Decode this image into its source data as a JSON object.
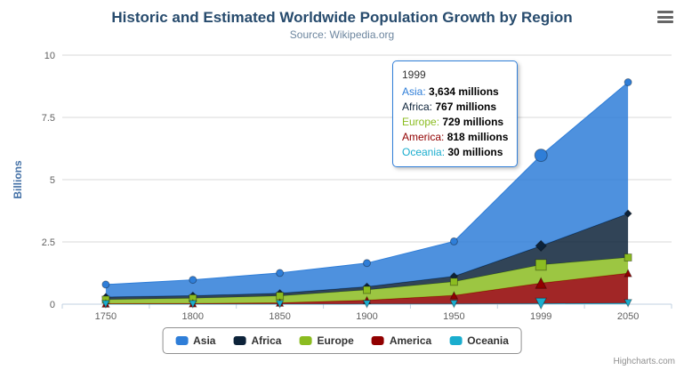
{
  "header": {
    "title": "Historic and Estimated Worldwide Population Growth by Region",
    "subtitle": "Source: Wikipedia.org"
  },
  "chart_data": {
    "type": "area",
    "stacking": "normal",
    "categories": [
      "1750",
      "1800",
      "1850",
      "1900",
      "1950",
      "1999",
      "2050"
    ],
    "unit": "millions",
    "series": [
      {
        "name": "Asia",
        "color": "#2f7ed8",
        "marker": "circle",
        "values": [
          502,
          635,
          809,
          947,
          1402,
          3634,
          5268
        ]
      },
      {
        "name": "Africa",
        "color": "#0d233a",
        "marker": "diamond",
        "values": [
          106,
          107,
          111,
          133,
          221,
          767,
          1766
        ]
      },
      {
        "name": "Europe",
        "color": "#8bbc21",
        "marker": "square",
        "values": [
          163,
          203,
          276,
          408,
          547,
          729,
          628
        ]
      },
      {
        "name": "America",
        "color": "#910000",
        "marker": "triangle",
        "values": [
          18,
          31,
          54,
          156,
          339,
          818,
          1201
        ]
      },
      {
        "name": "Oceania",
        "color": "#1aadce",
        "marker": "triangle-down",
        "values": [
          2,
          2,
          2,
          6,
          13,
          30,
          46
        ]
      }
    ],
    "xlabel": "",
    "ylabel": "Billions",
    "ylim": [
      0,
      10
    ],
    "yticks": [
      0,
      2.5,
      5,
      7.5,
      10
    ],
    "ytick_labels": [
      "0",
      "2.5",
      "5",
      "7.5",
      "10"
    ],
    "grid": true,
    "legend_position": "bottom",
    "hover_index": 5
  },
  "tooltip": {
    "header": "1999",
    "border_color": "#2f7ed8",
    "rows": [
      {
        "label": "Asia",
        "value": "3,634 millions",
        "color": "#2f7ed8"
      },
      {
        "label": "Africa",
        "value": "767 millions",
        "color": "#0d233a"
      },
      {
        "label": "Europe",
        "value": "729 millions",
        "color": "#8bbc21"
      },
      {
        "label": "America",
        "value": "818 millions",
        "color": "#910000"
      },
      {
        "label": "Oceania",
        "value": "30 millions",
        "color": "#1aadce"
      }
    ]
  },
  "legend": {
    "items": [
      {
        "label": "Asia",
        "color": "#2f7ed8"
      },
      {
        "label": "Africa",
        "color": "#0d233a"
      },
      {
        "label": "Europe",
        "color": "#8bbc21"
      },
      {
        "label": "America",
        "color": "#910000"
      },
      {
        "label": "Oceania",
        "color": "#1aadce"
      }
    ]
  },
  "credits": {
    "text": "Highcharts.com"
  }
}
